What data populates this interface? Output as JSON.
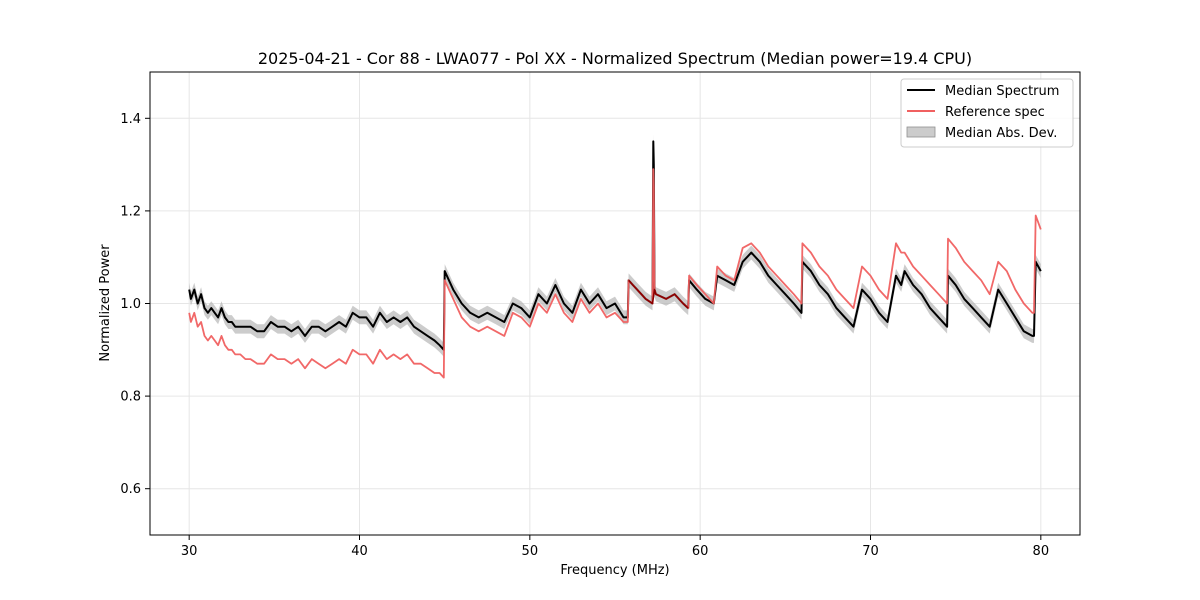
{
  "chart_data": {
    "type": "line",
    "title": "2025-04-21 - Cor 88 - LWA077 - Pol XX - Normalized Spectrum (Median power=19.4 CPU)",
    "xlabel": "Frequency (MHz)",
    "ylabel": "Normalized Power",
    "xlim": [
      27.7,
      82.3
    ],
    "ylim": [
      0.5,
      1.5
    ],
    "xticks": [
      30,
      40,
      50,
      60,
      70,
      80
    ],
    "yticks": [
      0.6,
      0.8,
      1.0,
      1.2,
      1.4
    ],
    "xtick_labels": [
      "30",
      "40",
      "50",
      "60",
      "70",
      "80"
    ],
    "ytick_labels": [
      "0.6",
      "0.8",
      "1.0",
      "1.2",
      "1.4"
    ],
    "grid": true,
    "legend_position": "top-right",
    "legend": {
      "median": "Median Spectrum",
      "reference": "Reference spec",
      "mad": "Median Abs. Dev."
    },
    "colors": {
      "median": "#000000",
      "reference": "#f06060",
      "mad": "#b0b0b0",
      "overlap": "#8b0000"
    },
    "band_halfwidth": 0.015,
    "series": [
      {
        "name": "Median Spectrum",
        "x": [
          30.0,
          30.1,
          30.3,
          30.5,
          30.7,
          30.9,
          31.1,
          31.3,
          31.5,
          31.7,
          31.9,
          32.1,
          32.3,
          32.5,
          32.7,
          33.0,
          33.3,
          33.6,
          34.0,
          34.4,
          34.8,
          35.2,
          35.6,
          36.0,
          36.4,
          36.8,
          37.2,
          37.6,
          38.0,
          38.4,
          38.8,
          39.2,
          39.6,
          40.0,
          40.4,
          40.8,
          41.2,
          41.6,
          42.0,
          42.4,
          42.8,
          43.2,
          43.6,
          44.0,
          44.4,
          44.7,
          44.95,
          45.0,
          45.5,
          46.0,
          46.5,
          47.0,
          47.5,
          48.0,
          48.5,
          49.0,
          49.5,
          50.0,
          50.5,
          51.0,
          51.5,
          52.0,
          52.5,
          53.0,
          53.5,
          54.0,
          54.5,
          55.0,
          55.5,
          55.75,
          55.8,
          56.3,
          56.8,
          57.2,
          57.25,
          57.28,
          57.32,
          57.4,
          58.0,
          58.5,
          59.0,
          59.3,
          59.35,
          59.8,
          60.3,
          60.8,
          61.0,
          61.5,
          62.0,
          62.5,
          63.0,
          63.5,
          64.0,
          64.5,
          65.0,
          65.5,
          65.95,
          66.0,
          66.5,
          67.0,
          67.5,
          68.0,
          68.5,
          69.0,
          69.5,
          70.0,
          70.5,
          71.0,
          71.5,
          71.8,
          72.0,
          72.5,
          73.0,
          73.5,
          74.0,
          74.5,
          74.55,
          75.0,
          75.5,
          76.0,
          76.5,
          77.0,
          77.5,
          78.0,
          78.5,
          79.0,
          79.5,
          79.6,
          79.7,
          80.0
        ],
        "values": [
          1.03,
          1.01,
          1.03,
          1.0,
          1.02,
          0.99,
          0.98,
          0.99,
          0.98,
          0.97,
          0.99,
          0.97,
          0.96,
          0.96,
          0.95,
          0.95,
          0.95,
          0.95,
          0.94,
          0.94,
          0.96,
          0.95,
          0.95,
          0.94,
          0.95,
          0.93,
          0.95,
          0.95,
          0.94,
          0.95,
          0.96,
          0.95,
          0.98,
          0.97,
          0.97,
          0.95,
          0.98,
          0.96,
          0.97,
          0.96,
          0.97,
          0.95,
          0.94,
          0.93,
          0.92,
          0.91,
          0.9,
          1.07,
          1.03,
          1.0,
          0.98,
          0.97,
          0.98,
          0.97,
          0.96,
          1.0,
          0.99,
          0.97,
          1.02,
          1.0,
          1.04,
          1.0,
          0.98,
          1.03,
          1.0,
          1.02,
          0.99,
          1.0,
          0.97,
          0.97,
          1.05,
          1.03,
          1.01,
          1.0,
          1.35,
          1.3,
          1.03,
          1.02,
          1.01,
          1.02,
          1.0,
          0.99,
          1.05,
          1.03,
          1.01,
          1.0,
          1.06,
          1.05,
          1.04,
          1.09,
          1.11,
          1.09,
          1.06,
          1.04,
          1.02,
          1.0,
          0.98,
          1.09,
          1.07,
          1.04,
          1.02,
          0.99,
          0.97,
          0.95,
          1.03,
          1.01,
          0.98,
          0.96,
          1.06,
          1.04,
          1.07,
          1.04,
          1.02,
          0.99,
          0.97,
          0.95,
          1.06,
          1.04,
          1.01,
          0.99,
          0.97,
          0.95,
          1.03,
          1.0,
          0.97,
          0.94,
          0.93,
          0.93,
          1.09,
          1.07
        ]
      },
      {
        "name": "Reference spec",
        "x": [
          30.0,
          30.1,
          30.3,
          30.5,
          30.7,
          30.9,
          31.1,
          31.3,
          31.5,
          31.7,
          31.9,
          32.1,
          32.3,
          32.5,
          32.7,
          33.0,
          33.3,
          33.6,
          34.0,
          34.4,
          34.8,
          35.2,
          35.6,
          36.0,
          36.4,
          36.8,
          37.2,
          37.6,
          38.0,
          38.4,
          38.8,
          39.2,
          39.6,
          40.0,
          40.4,
          40.8,
          41.2,
          41.6,
          42.0,
          42.4,
          42.8,
          43.2,
          43.6,
          44.0,
          44.4,
          44.7,
          44.95,
          45.0,
          45.5,
          46.0,
          46.5,
          47.0,
          47.5,
          48.0,
          48.5,
          49.0,
          49.5,
          50.0,
          50.5,
          51.0,
          51.5,
          52.0,
          52.5,
          53.0,
          53.5,
          54.0,
          54.5,
          55.0,
          55.5,
          55.75,
          55.8,
          56.3,
          56.8,
          57.2,
          57.25,
          57.28,
          57.32,
          57.4,
          58.0,
          58.5,
          59.0,
          59.3,
          59.35,
          59.8,
          60.3,
          60.8,
          61.0,
          61.5,
          62.0,
          62.5,
          63.0,
          63.5,
          64.0,
          64.5,
          65.0,
          65.5,
          65.95,
          66.0,
          66.5,
          67.0,
          67.5,
          68.0,
          68.5,
          69.0,
          69.5,
          70.0,
          70.5,
          71.0,
          71.5,
          71.8,
          72.0,
          72.5,
          73.0,
          73.5,
          74.0,
          74.5,
          74.55,
          75.0,
          75.5,
          76.0,
          76.5,
          77.0,
          77.5,
          78.0,
          78.5,
          79.0,
          79.5,
          79.6,
          79.7,
          80.0
        ],
        "values": [
          0.98,
          0.96,
          0.98,
          0.95,
          0.96,
          0.93,
          0.92,
          0.93,
          0.92,
          0.91,
          0.93,
          0.91,
          0.9,
          0.9,
          0.89,
          0.89,
          0.88,
          0.88,
          0.87,
          0.87,
          0.89,
          0.88,
          0.88,
          0.87,
          0.88,
          0.86,
          0.88,
          0.87,
          0.86,
          0.87,
          0.88,
          0.87,
          0.9,
          0.89,
          0.89,
          0.87,
          0.9,
          0.88,
          0.89,
          0.88,
          0.89,
          0.87,
          0.87,
          0.86,
          0.85,
          0.85,
          0.84,
          1.05,
          1.01,
          0.97,
          0.95,
          0.94,
          0.95,
          0.94,
          0.93,
          0.98,
          0.97,
          0.95,
          1.0,
          0.98,
          1.02,
          0.98,
          0.96,
          1.01,
          0.98,
          1.0,
          0.97,
          0.98,
          0.96,
          0.96,
          1.05,
          1.03,
          1.01,
          1.0,
          1.29,
          1.25,
          1.03,
          1.02,
          1.01,
          1.02,
          1.0,
          0.99,
          1.06,
          1.04,
          1.02,
          1.0,
          1.08,
          1.06,
          1.05,
          1.12,
          1.13,
          1.11,
          1.08,
          1.06,
          1.04,
          1.02,
          1.0,
          1.13,
          1.11,
          1.08,
          1.06,
          1.03,
          1.01,
          0.99,
          1.08,
          1.06,
          1.03,
          1.01,
          1.13,
          1.11,
          1.11,
          1.08,
          1.06,
          1.04,
          1.02,
          1.0,
          1.14,
          1.12,
          1.09,
          1.07,
          1.05,
          1.02,
          1.09,
          1.07,
          1.03,
          1.0,
          0.98,
          0.98,
          1.19,
          1.16
        ]
      }
    ]
  }
}
